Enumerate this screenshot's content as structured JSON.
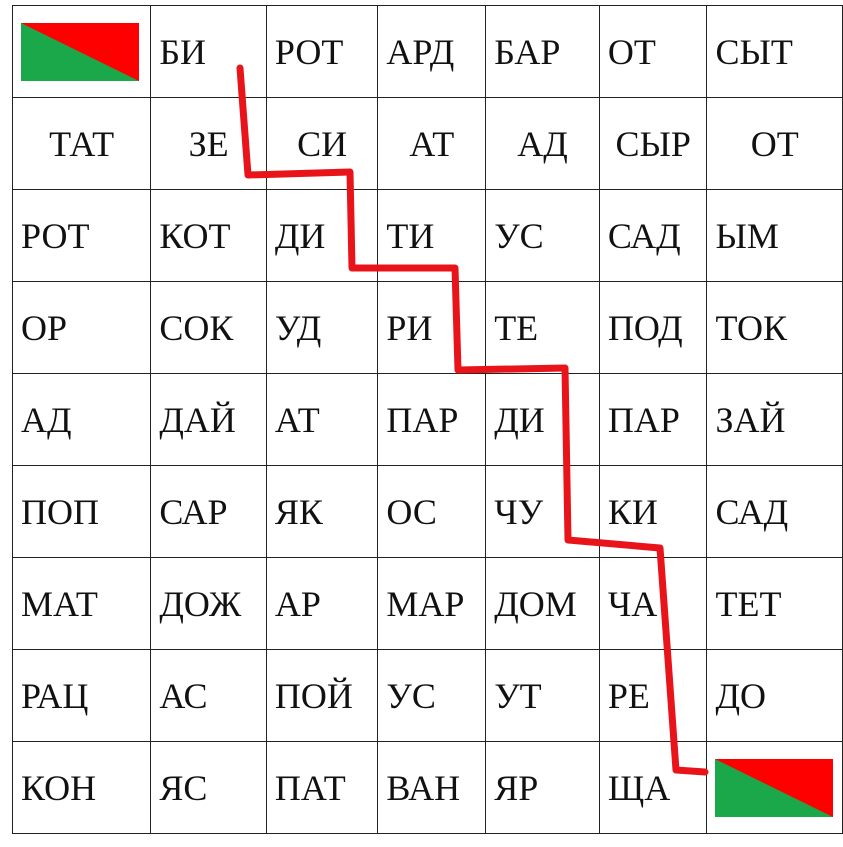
{
  "colors": {
    "path": "#e8141a",
    "flag_green": "#1aa84a",
    "flag_red": "#ff0000"
  },
  "start_icon": "start-flag-icon",
  "finish_icon": "finish-flag-icon",
  "rows": [
    [
      "",
      "БИ",
      "РОТ",
      "АРД",
      "БАР",
      "ОТ",
      "СЫТ"
    ],
    [
      "ТАТ",
      "ЗЕ",
      "СИ",
      "АТ",
      "АД",
      "СЫР",
      "ОТ"
    ],
    [
      "РОТ",
      "КОТ",
      "ДИ",
      "ТИ",
      "УС",
      "САД",
      "ЫМ"
    ],
    [
      "ОР",
      "СОК",
      "УД",
      "РИ",
      "ТЕ",
      "ПОД",
      "ТОК"
    ],
    [
      "АД",
      "ДАЙ",
      "АТ",
      "ПАР",
      "ДИ",
      "ПАР",
      "ЗАЙ"
    ],
    [
      "ПОП",
      "САР",
      "ЯК",
      "ОС",
      "ЧУ",
      "КИ",
      "САД"
    ],
    [
      "МАТ",
      "ДОЖ",
      "АР",
      "МАР",
      "ДОМ",
      "ЧА",
      "ТЕТ"
    ],
    [
      "РАЦ",
      "АС",
      "ПОЙ",
      "УС",
      "УТ",
      "РЕ",
      "ДО"
    ],
    [
      "КОН",
      "ЯС",
      "ПАТ",
      "ВАН",
      "ЯР",
      "ЩА",
      ""
    ]
  ]
}
